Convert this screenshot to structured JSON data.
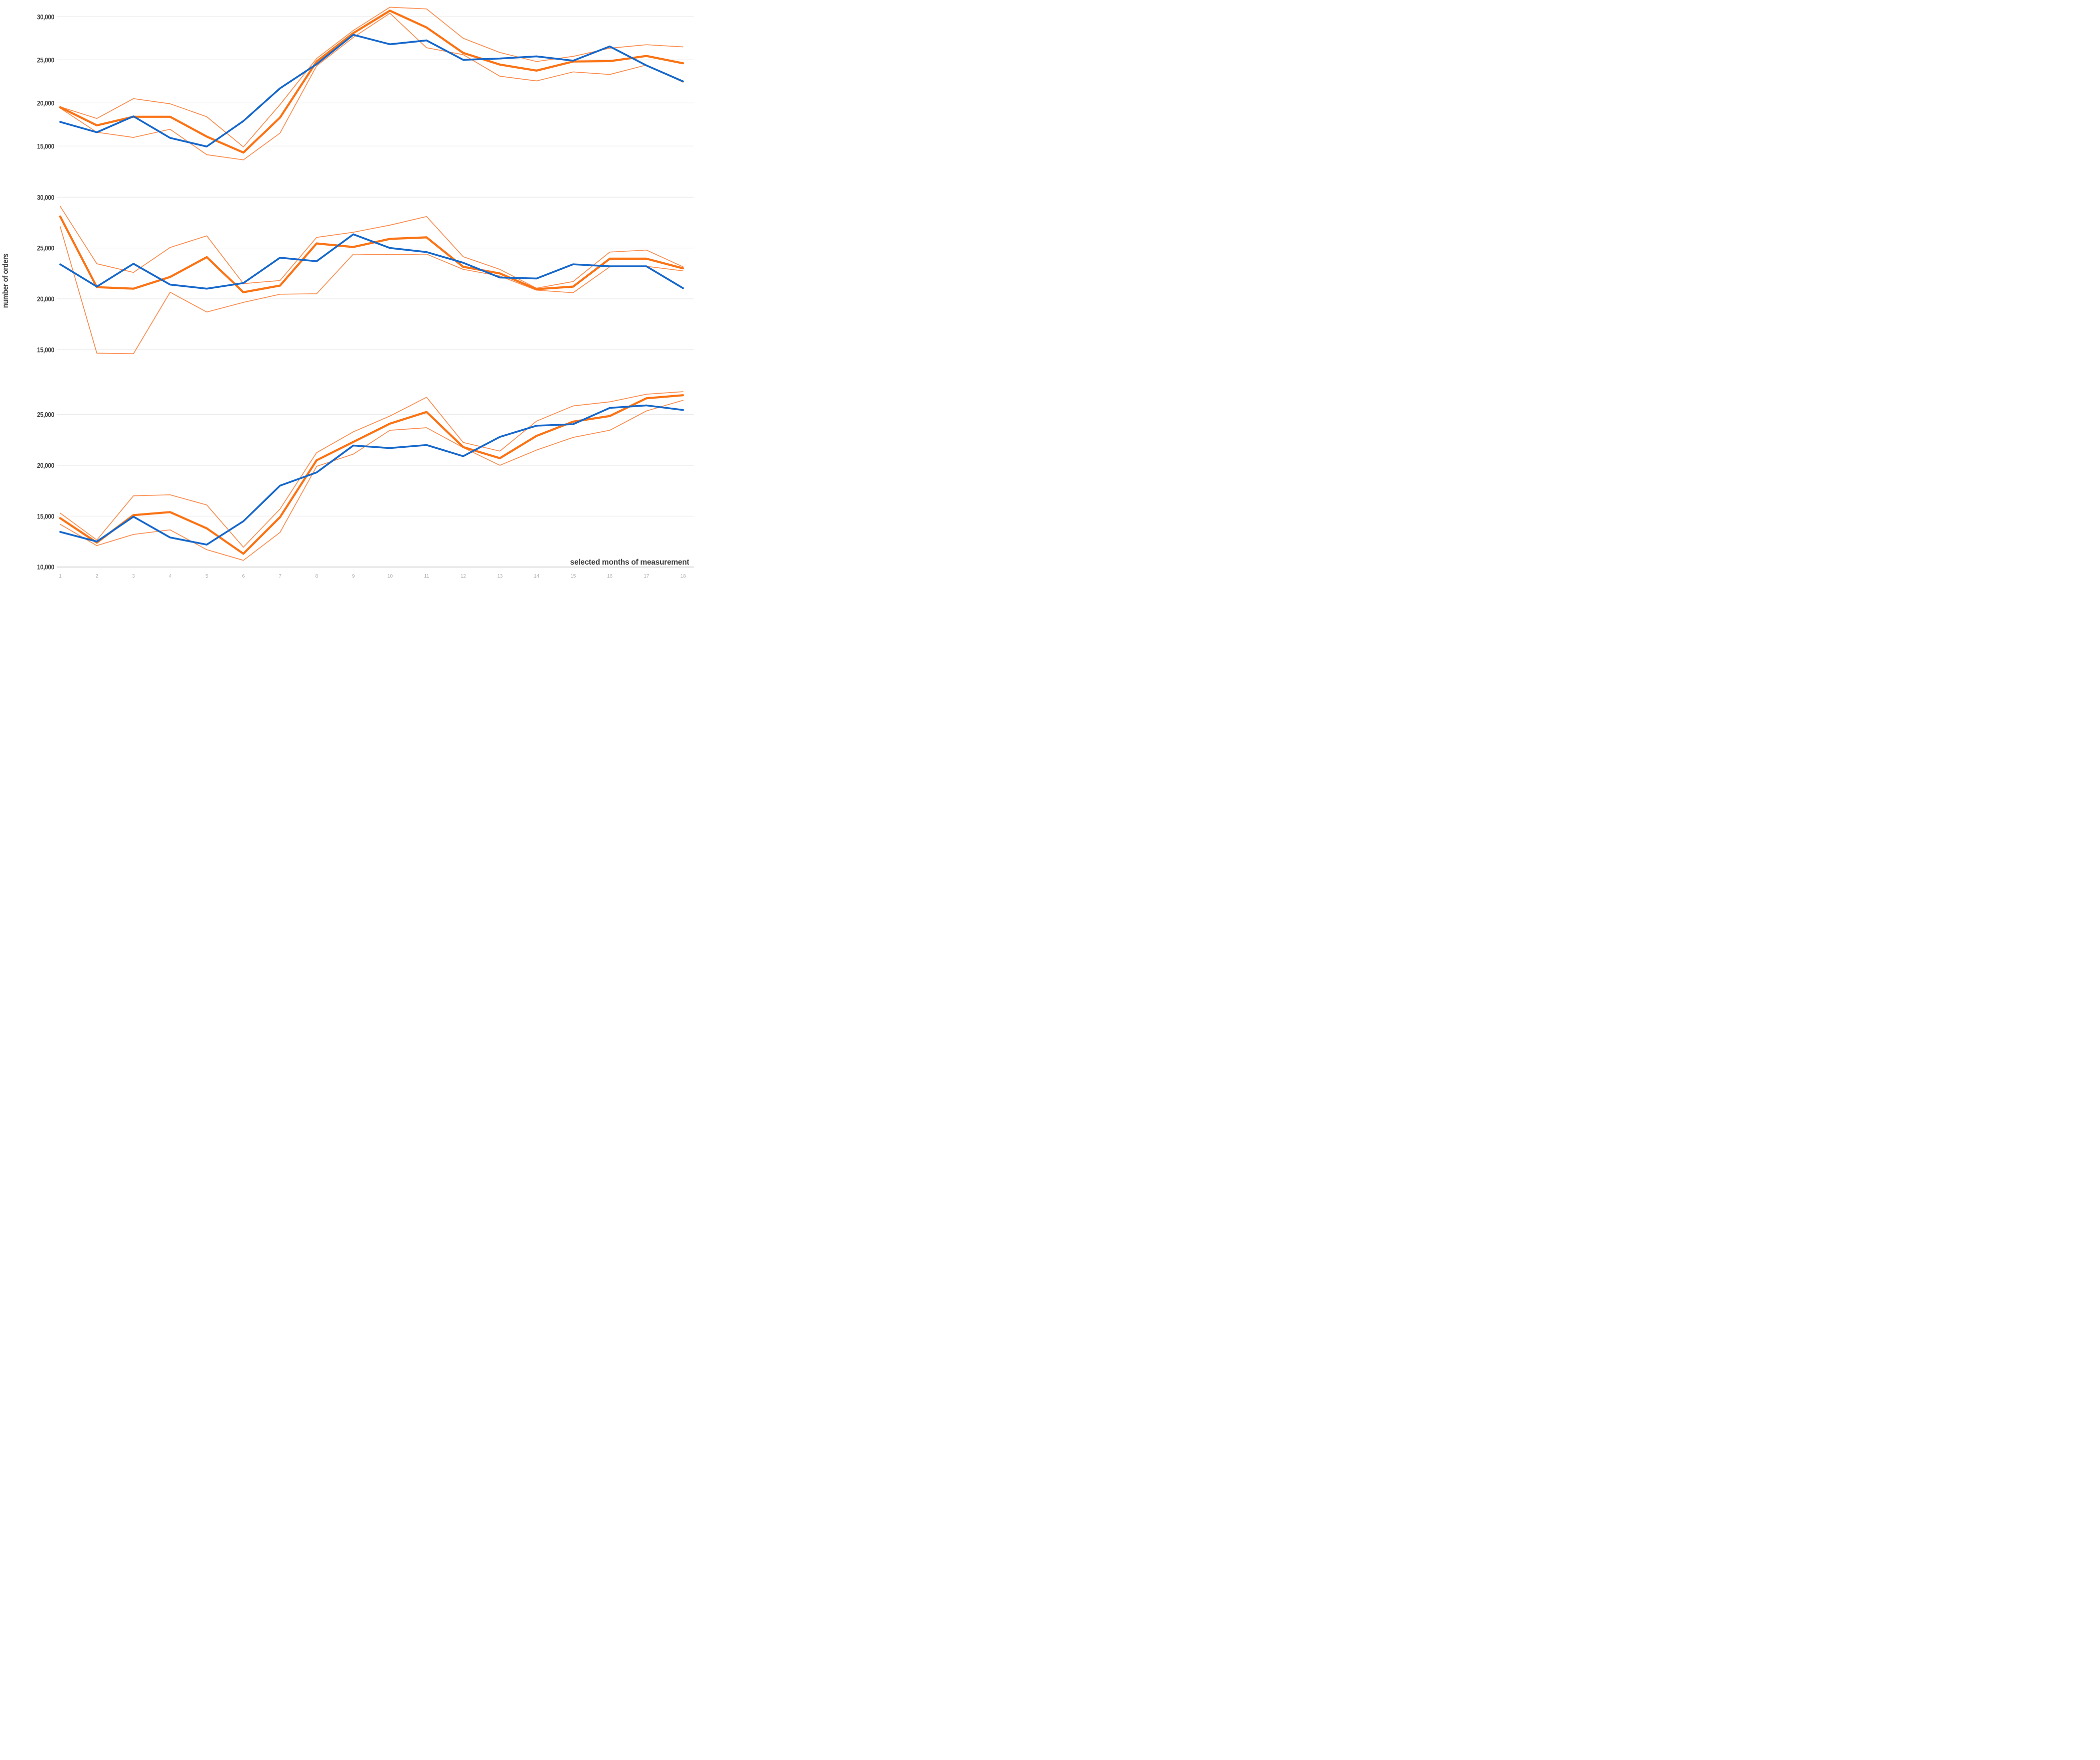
{
  "figure": {
    "background": "#ffffff",
    "y_title": "number of orders",
    "x_title": "selected months of measurement"
  },
  "colors": {
    "actual": "#1567ca",
    "forecast": "#fa7315",
    "bounds": "#fb8c4e",
    "gridline": "#ebebeb",
    "axis_line": "#d6d6d6",
    "x_tick_label": "#b5b5b5",
    "y_tick_label": "#3d3d3d",
    "axis_title": "#3d3d3d"
  },
  "chart_data": [
    {
      "panel": "top",
      "type": "line",
      "x": [
        1,
        2,
        3,
        4,
        5,
        6,
        7,
        8,
        9,
        10,
        11,
        12,
        13,
        14,
        15,
        16,
        17,
        18
      ],
      "yticks": [
        30000,
        25000,
        20000,
        15000
      ],
      "grid": true,
      "legend": "none",
      "ylim": [
        13300,
        31400
      ],
      "series": [
        {
          "name": "lower-bound",
          "role": "bounds",
          "values": [
            19400,
            16600,
            16000,
            16950,
            14000,
            13400,
            16500,
            24300,
            27600,
            30400,
            26400,
            25600,
            23100,
            22550,
            23600,
            23300,
            24400,
            22400
          ]
        },
        {
          "name": "upper-bound",
          "role": "bounds",
          "values": [
            19550,
            18200,
            20500,
            19900,
            18400,
            14900,
            19800,
            25150,
            28400,
            31100,
            30900,
            27500,
            25850,
            24800,
            25400,
            26350,
            26750,
            26500
          ]
        },
        {
          "name": "forecast",
          "role": "forecast",
          "values": [
            19500,
            17400,
            18400,
            18400,
            16100,
            14250,
            18300,
            24800,
            28100,
            30700,
            28750,
            25800,
            24450,
            23750,
            24800,
            24850,
            25450,
            24600
          ]
        },
        {
          "name": "actual",
          "role": "actual",
          "values": [
            17800,
            16600,
            18450,
            15950,
            14950,
            17900,
            21700,
            24500,
            27900,
            26800,
            27250,
            25000,
            25150,
            25400,
            24900,
            26550,
            24350,
            22500
          ]
        }
      ]
    },
    {
      "panel": "middle",
      "type": "line",
      "x": [
        1,
        2,
        3,
        4,
        5,
        6,
        7,
        8,
        9,
        10,
        11,
        12,
        13,
        14,
        15,
        16,
        17,
        18
      ],
      "yticks": [
        30000,
        25000,
        20000,
        15000
      ],
      "grid": true,
      "legend": "none",
      "ylim": [
        13800,
        29600
      ],
      "series": [
        {
          "name": "lower-bound",
          "role": "bounds",
          "values": [
            27100,
            14650,
            14600,
            20650,
            18700,
            19650,
            20450,
            20500,
            24400,
            24350,
            24400,
            22900,
            22250,
            20850,
            20600,
            23150,
            23200,
            22750
          ]
        },
        {
          "name": "upper-bound",
          "role": "bounds",
          "values": [
            29100,
            23450,
            22600,
            25050,
            26200,
            21500,
            21800,
            26050,
            26550,
            27250,
            28100,
            24150,
            22900,
            21050,
            21700,
            24600,
            24800,
            23150
          ]
        },
        {
          "name": "forecast",
          "role": "forecast",
          "values": [
            28100,
            21150,
            21000,
            22150,
            24100,
            20650,
            21300,
            25450,
            25100,
            25900,
            26050,
            23150,
            22500,
            20950,
            21200,
            23950,
            23950,
            23000
          ]
        },
        {
          "name": "actual",
          "role": "actual",
          "values": [
            23400,
            21200,
            23450,
            21400,
            21000,
            21550,
            24050,
            23700,
            26350,
            25000,
            24600,
            23550,
            22100,
            22000,
            23400,
            23200,
            23200,
            21050
          ]
        }
      ]
    },
    {
      "panel": "bottom",
      "type": "line",
      "x": [
        1,
        2,
        3,
        4,
        5,
        6,
        7,
        8,
        9,
        10,
        11,
        12,
        13,
        14,
        15,
        16,
        17,
        18
      ],
      "yticks": [
        25000,
        20000,
        15000,
        10000
      ],
      "grid": true,
      "legend": "none",
      "ylim": [
        10000,
        27700
      ],
      "series": [
        {
          "name": "lower-bound",
          "role": "bounds",
          "values": [
            14200,
            12100,
            13200,
            13650,
            11700,
            10650,
            13400,
            19900,
            21100,
            23450,
            23700,
            21750,
            20000,
            21500,
            22750,
            23450,
            25350,
            26400
          ]
        },
        {
          "name": "upper-bound",
          "role": "bounds",
          "values": [
            15300,
            12650,
            17000,
            17100,
            16100,
            11950,
            15700,
            21250,
            23300,
            24850,
            26700,
            22250,
            21400,
            24350,
            25850,
            26250,
            27000,
            27250
          ]
        },
        {
          "name": "forecast",
          "role": "forecast",
          "values": [
            14800,
            12400,
            15100,
            15400,
            13800,
            11300,
            14900,
            20500,
            22300,
            24100,
            25250,
            21800,
            20700,
            22900,
            24300,
            24850,
            26600,
            26900
          ]
        },
        {
          "name": "actual",
          "role": "actual",
          "values": [
            13450,
            12500,
            14950,
            12900,
            12200,
            14500,
            18000,
            19300,
            21950,
            21700,
            22000,
            20900,
            22800,
            23900,
            24050,
            25650,
            25900,
            25450
          ]
        }
      ]
    }
  ],
  "x_tick_labels": [
    "1",
    "2",
    "3",
    "4",
    "5",
    "6",
    "7",
    "8",
    "9",
    "10",
    "11",
    "12",
    "13",
    "14",
    "15",
    "16",
    "17",
    "18"
  ]
}
